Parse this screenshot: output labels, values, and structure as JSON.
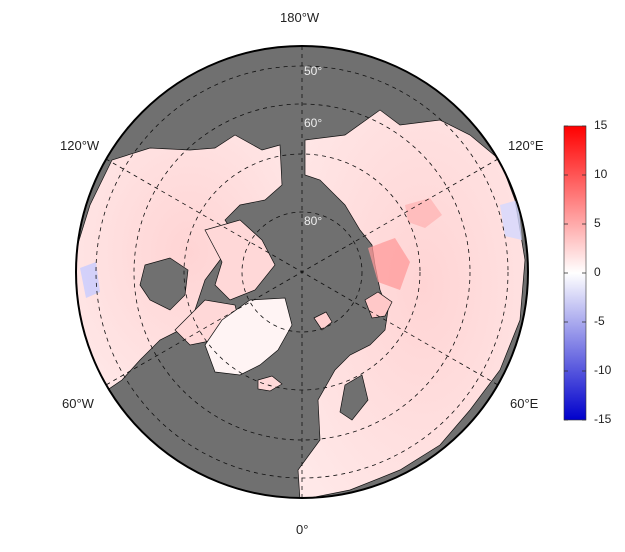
{
  "map": {
    "projection": "north-polar-stereographic",
    "ocean_color": "#707070",
    "land_cmap": "blue-white-red",
    "longitude_labels": {
      "top": "180°W",
      "upper_left": "120°W",
      "upper_right": "120°E",
      "lower_left": "60°W",
      "lower_right": "60°E",
      "bottom": "0°"
    },
    "latitude_labels": [
      "50°",
      "60°",
      "80°"
    ]
  },
  "colorbar": {
    "min": -15,
    "max": 15,
    "colors": [
      "#0000cc",
      "#ffffff",
      "#ff0000"
    ],
    "ticks": [
      "15",
      "10",
      "5",
      "0",
      "-5",
      "-10",
      "-15"
    ]
  }
}
